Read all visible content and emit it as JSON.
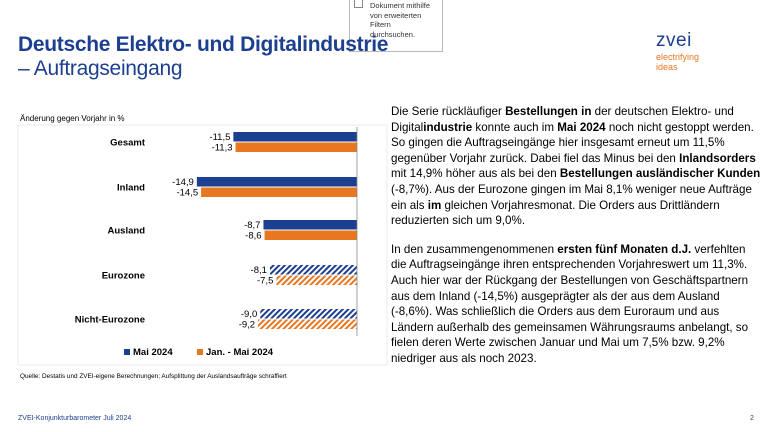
{
  "tooltip": {
    "lines": [
      "Dokument mithilfe",
      "von erweiterten",
      "Filtern",
      "durchsuchen."
    ]
  },
  "header": {
    "title_line1": "Deutsche Elektro- und Digitalindustrie",
    "title_line2": "– Auftragseingang"
  },
  "logo": {
    "name": "zvei",
    "tagline_line1": "electrifying",
    "tagline_line2": "ideas"
  },
  "chart_data": {
    "type": "bar",
    "orientation": "horizontal",
    "subtitle": "Änderung gegen Vorjahr in %",
    "categories": [
      "Gesamt",
      "Inland",
      "Ausland",
      "Eurozone",
      "Nicht-Eurozone"
    ],
    "series": [
      {
        "name": "Mai 2024",
        "values": [
          -11.5,
          -14.9,
          -8.7,
          -8.1,
          -9.0
        ],
        "labels": [
          "-11,5",
          "-14,9",
          "-8,7",
          "-8,1",
          "-9,0"
        ],
        "color": "#1d3f8f",
        "hatched": [
          false,
          false,
          false,
          true,
          true
        ]
      },
      {
        "name": "Jan. - Mai 2024",
        "values": [
          -11.3,
          -14.5,
          -8.6,
          -7.5,
          -9.2
        ],
        "labels": [
          "-11,3",
          "-14,5",
          "-8,6",
          "-7,5",
          "-9,2"
        ],
        "color": "#e87722",
        "hatched": [
          false,
          false,
          false,
          true,
          true
        ]
      }
    ],
    "xlim": [
      -16,
      0
    ],
    "legend_position": "bottom",
    "source": "Quelle: Destatis und ZVEI-eigene Berechnungen; Aufsplittung der Auslandsaufträge schraffiert"
  },
  "colors": {
    "brand_blue": "#1d3f8f",
    "brand_orange": "#e87722"
  },
  "body_text": {
    "p1": [
      {
        "t": "Die Serie rückläufiger ",
        "b": false
      },
      {
        "t": "Bestellungen",
        "b": true
      },
      {
        "t": " ",
        "b": false
      },
      {
        "t": "in",
        "b": true
      },
      {
        "t": " der deutschen Elektro- und Digital",
        "b": false
      },
      {
        "t": "industrie",
        "b": true
      },
      {
        "t": " konnte auch im ",
        "b": false
      },
      {
        "t": "Mai 2024",
        "b": true
      },
      {
        "t": " noch nicht gestoppt werden. So gingen die Auftragseingänge hier insgesamt erneut um 11,5% gegenüber Vorjahr zurück. Dabei fiel das Minus bei den ",
        "b": false
      },
      {
        "t": "Inlandsorders",
        "b": true
      },
      {
        "t": " mit 14,9% höher aus als bei den ",
        "b": false
      },
      {
        "t": "Bestellungen ausländischer Kunden",
        "b": true
      },
      {
        "t": " (-8,7%). Aus der Eurozone gingen im Mai 8,1% weniger neue Aufträge ein als ",
        "b": false
      },
      {
        "t": "im",
        "b": true
      },
      {
        "t": " gleichen Vorjahresmonat. Die Orders aus Drittländern reduzierten sich um 9,0%.",
        "b": false
      }
    ],
    "p2": [
      {
        "t": "In den zusammengenommenen ",
        "b": false
      },
      {
        "t": "ersten fünf Monaten d.J.",
        "b": true
      },
      {
        "t": " verfehlten die Auftragseingänge ihren entsprechenden Vorjahreswert um 11,3%. Auch hier war der Rückgang der Bestellungen von Geschäftspartnern aus dem Inland (-14,5%) ausgeprägter als der aus dem Ausland (-8,6%). Was schließlich die Orders aus dem Euroraum und aus Ländern außerhalb des gemeinsamen Währungsraums anbelangt, so fielen deren Werte zwischen Januar und Mai um 7,5% bzw. 9,2% niedriger aus als noch 2023.",
        "b": false
      }
    ]
  },
  "footer": {
    "left": "ZVEI-Konjunkturbarometer Juli 2024",
    "page": "2"
  }
}
